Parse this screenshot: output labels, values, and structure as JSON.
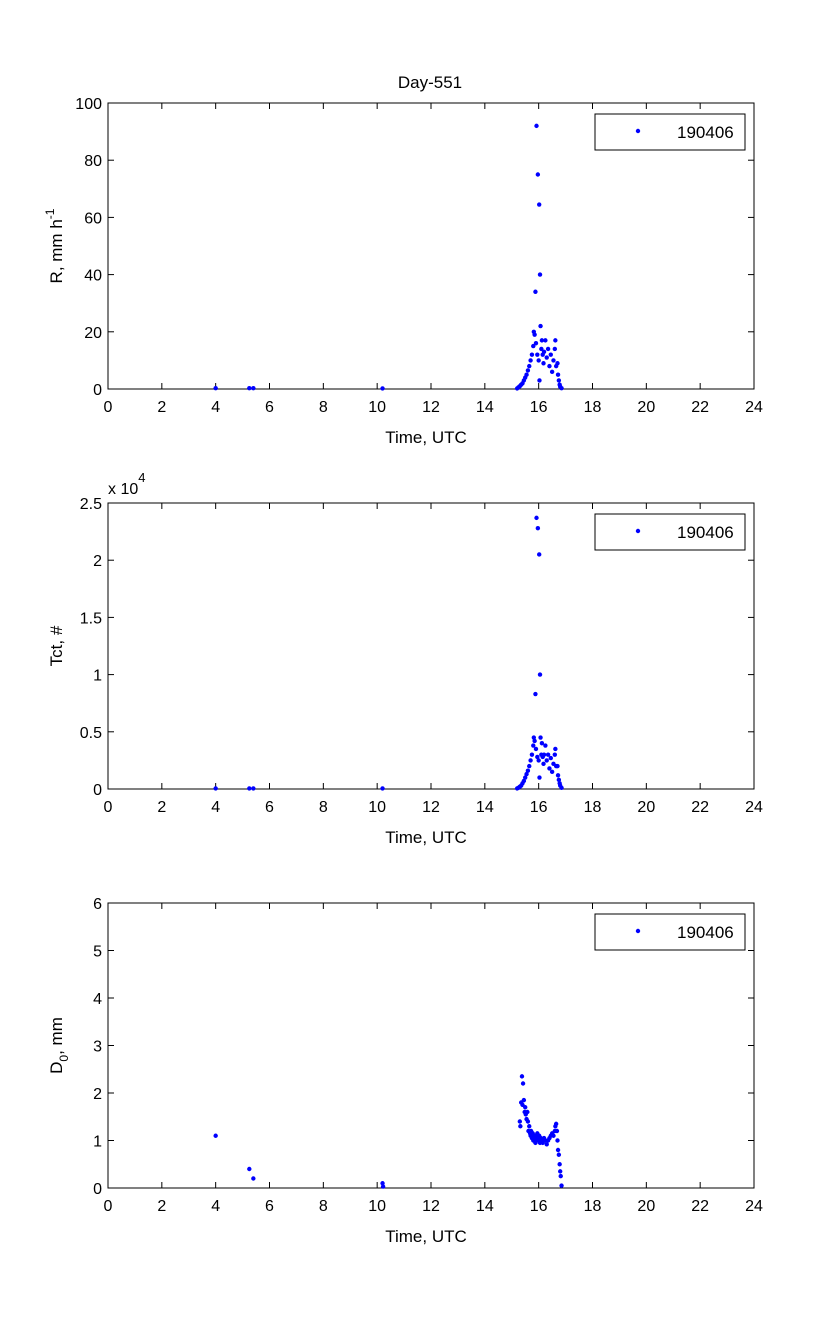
{
  "figure": {
    "title": "Day-551"
  },
  "colors": {
    "series": "#0000ff",
    "axes": "#000000",
    "background": "#ffffff"
  },
  "chart_data": [
    {
      "type": "scatter",
      "xlabel": "Time, UTC",
      "ylabel": "R, mm h",
      "ylabel_sup": "-1",
      "xlim": [
        0,
        24
      ],
      "ylim": [
        0,
        100
      ],
      "xticks": [
        0,
        2,
        4,
        6,
        8,
        10,
        12,
        14,
        16,
        18,
        20,
        22,
        24
      ],
      "yticks": [
        0,
        20,
        40,
        60,
        80,
        100
      ],
      "ytick_labels": [
        "0",
        "20",
        "40",
        "60",
        "80",
        "100"
      ],
      "exponent_label": "",
      "exponent_sup": "",
      "legend": {
        "placement": "top-right",
        "entries": [
          "190406"
        ]
      },
      "grid": false,
      "series": [
        {
          "name": "190406",
          "points": [
            [
              4.0,
              0.3
            ],
            [
              5.25,
              0.3
            ],
            [
              5.4,
              0.3
            ],
            [
              10.2,
              0.2
            ],
            [
              15.2,
              0.2
            ],
            [
              15.25,
              0.6
            ],
            [
              15.3,
              1.0
            ],
            [
              15.35,
              1.5
            ],
            [
              15.4,
              2.0
            ],
            [
              15.45,
              3.0
            ],
            [
              15.5,
              4.0
            ],
            [
              15.55,
              5.0
            ],
            [
              15.6,
              6.5
            ],
            [
              15.65,
              8.0
            ],
            [
              15.7,
              10.0
            ],
            [
              15.75,
              12.0
            ],
            [
              15.8,
              15.0
            ],
            [
              15.82,
              20.0
            ],
            [
              15.85,
              19.0
            ],
            [
              15.88,
              34.0
            ],
            [
              15.9,
              16.0
            ],
            [
              15.92,
              92.0
            ],
            [
              15.95,
              12.0
            ],
            [
              15.97,
              75.0
            ],
            [
              16.0,
              10.0
            ],
            [
              16.02,
              64.5
            ],
            [
              16.03,
              3.0
            ],
            [
              16.05,
              40.0
            ],
            [
              16.07,
              22.0
            ],
            [
              16.1,
              14.0
            ],
            [
              16.12,
              17.0
            ],
            [
              16.15,
              12.0
            ],
            [
              16.18,
              9.0
            ],
            [
              16.2,
              13.0
            ],
            [
              16.25,
              17.0
            ],
            [
              16.3,
              11.0
            ],
            [
              16.35,
              14.0
            ],
            [
              16.4,
              8.0
            ],
            [
              16.45,
              12.0
            ],
            [
              16.5,
              6.0
            ],
            [
              16.55,
              10.0
            ],
            [
              16.6,
              14.0
            ],
            [
              16.62,
              17.0
            ],
            [
              16.65,
              8.0
            ],
            [
              16.7,
              9.0
            ],
            [
              16.72,
              5.0
            ],
            [
              16.75,
              3.0
            ],
            [
              16.78,
              1.5
            ],
            [
              16.8,
              0.8
            ],
            [
              16.85,
              0.3
            ]
          ]
        }
      ]
    },
    {
      "type": "scatter",
      "xlabel": "Time, UTC",
      "ylabel": "Tct, #",
      "ylabel_sup": "",
      "xlim": [
        0,
        24
      ],
      "ylim": [
        0,
        2.5
      ],
      "xticks": [
        0,
        2,
        4,
        6,
        8,
        10,
        12,
        14,
        16,
        18,
        20,
        22,
        24
      ],
      "yticks": [
        0,
        0.5,
        1,
        1.5,
        2,
        2.5
      ],
      "ytick_labels": [
        "0",
        "0.5",
        "1",
        "1.5",
        "2",
        "2.5"
      ],
      "exponent_label": "x 10",
      "exponent_sup": "4",
      "legend": {
        "placement": "top-right",
        "entries": [
          "190406"
        ]
      },
      "grid": false,
      "series": [
        {
          "name": "190406",
          "points": [
            [
              4.0,
              0.005
            ],
            [
              5.25,
              0.005
            ],
            [
              5.4,
              0.005
            ],
            [
              10.2,
              0.005
            ],
            [
              15.2,
              0.005
            ],
            [
              15.25,
              0.01
            ],
            [
              15.3,
              0.02
            ],
            [
              15.35,
              0.03
            ],
            [
              15.4,
              0.05
            ],
            [
              15.45,
              0.07
            ],
            [
              15.5,
              0.1
            ],
            [
              15.55,
              0.13
            ],
            [
              15.6,
              0.16
            ],
            [
              15.65,
              0.2
            ],
            [
              15.7,
              0.25
            ],
            [
              15.75,
              0.3
            ],
            [
              15.8,
              0.38
            ],
            [
              15.82,
              0.45
            ],
            [
              15.85,
              0.42
            ],
            [
              15.88,
              0.83
            ],
            [
              15.9,
              0.35
            ],
            [
              15.92,
              2.37
            ],
            [
              15.95,
              0.28
            ],
            [
              15.97,
              2.28
            ],
            [
              16.0,
              0.25
            ],
            [
              16.02,
              2.05
            ],
            [
              16.03,
              0.1
            ],
            [
              16.05,
              1.0
            ],
            [
              16.07,
              0.45
            ],
            [
              16.1,
              0.3
            ],
            [
              16.12,
              0.4
            ],
            [
              16.15,
              0.28
            ],
            [
              16.18,
              0.22
            ],
            [
              16.2,
              0.3
            ],
            [
              16.25,
              0.38
            ],
            [
              16.3,
              0.25
            ],
            [
              16.35,
              0.3
            ],
            [
              16.4,
              0.18
            ],
            [
              16.45,
              0.27
            ],
            [
              16.5,
              0.15
            ],
            [
              16.55,
              0.22
            ],
            [
              16.6,
              0.3
            ],
            [
              16.62,
              0.35
            ],
            [
              16.65,
              0.2
            ],
            [
              16.7,
              0.2
            ],
            [
              16.72,
              0.12
            ],
            [
              16.75,
              0.08
            ],
            [
              16.78,
              0.05
            ],
            [
              16.8,
              0.03
            ],
            [
              16.85,
              0.01
            ]
          ]
        }
      ]
    },
    {
      "type": "scatter",
      "xlabel": "Time, UTC",
      "ylabel": "D",
      "ylabel_sub": "0",
      "ylabel_suffix": ", mm",
      "ylabel_sup": "",
      "xlim": [
        0,
        24
      ],
      "ylim": [
        0,
        6
      ],
      "xticks": [
        0,
        2,
        4,
        6,
        8,
        10,
        12,
        14,
        16,
        18,
        20,
        22,
        24
      ],
      "yticks": [
        0,
        1,
        2,
        3,
        4,
        5,
        6
      ],
      "ytick_labels": [
        "0",
        "1",
        "2",
        "3",
        "4",
        "5",
        "6"
      ],
      "exponent_label": "",
      "exponent_sup": "",
      "legend": {
        "placement": "top-right",
        "entries": [
          "190406"
        ]
      },
      "grid": false,
      "series": [
        {
          "name": "190406",
          "points": [
            [
              4.0,
              1.1
            ],
            [
              5.25,
              0.4
            ],
            [
              5.4,
              0.2
            ],
            [
              10.2,
              0.1
            ],
            [
              10.22,
              0.03
            ],
            [
              15.3,
              1.4
            ],
            [
              15.32,
              1.3
            ],
            [
              15.35,
              1.8
            ],
            [
              15.38,
              2.35
            ],
            [
              15.4,
              1.75
            ],
            [
              15.42,
              2.2
            ],
            [
              15.45,
              1.85
            ],
            [
              15.48,
              1.6
            ],
            [
              15.5,
              1.7
            ],
            [
              15.52,
              1.55
            ],
            [
              15.55,
              1.45
            ],
            [
              15.58,
              1.6
            ],
            [
              15.6,
              1.4
            ],
            [
              15.62,
              1.2
            ],
            [
              15.65,
              1.3
            ],
            [
              15.68,
              1.15
            ],
            [
              15.7,
              1.1
            ],
            [
              15.72,
              1.2
            ],
            [
              15.75,
              1.05
            ],
            [
              15.78,
              1.15
            ],
            [
              15.8,
              1.0
            ],
            [
              15.82,
              1.1
            ],
            [
              15.85,
              1.05
            ],
            [
              15.88,
              0.95
            ],
            [
              15.9,
              1.1
            ],
            [
              15.92,
              1.0
            ],
            [
              15.95,
              1.15
            ],
            [
              15.98,
              1.05
            ],
            [
              16.0,
              1.0
            ],
            [
              16.02,
              1.1
            ],
            [
              16.05,
              0.95
            ],
            [
              16.08,
              1.05
            ],
            [
              16.1,
              1.0
            ],
            [
              16.15,
              0.95
            ],
            [
              16.2,
              1.05
            ],
            [
              16.25,
              1.0
            ],
            [
              16.3,
              0.92
            ],
            [
              16.35,
              1.0
            ],
            [
              16.4,
              1.05
            ],
            [
              16.45,
              1.1
            ],
            [
              16.5,
              1.15
            ],
            [
              16.55,
              1.1
            ],
            [
              16.6,
              1.2
            ],
            [
              16.62,
              1.3
            ],
            [
              16.65,
              1.35
            ],
            [
              16.68,
              1.2
            ],
            [
              16.7,
              1.0
            ],
            [
              16.72,
              0.8
            ],
            [
              16.75,
              0.7
            ],
            [
              16.78,
              0.5
            ],
            [
              16.8,
              0.35
            ],
            [
              16.82,
              0.25
            ],
            [
              16.85,
              0.05
            ]
          ]
        }
      ]
    }
  ]
}
